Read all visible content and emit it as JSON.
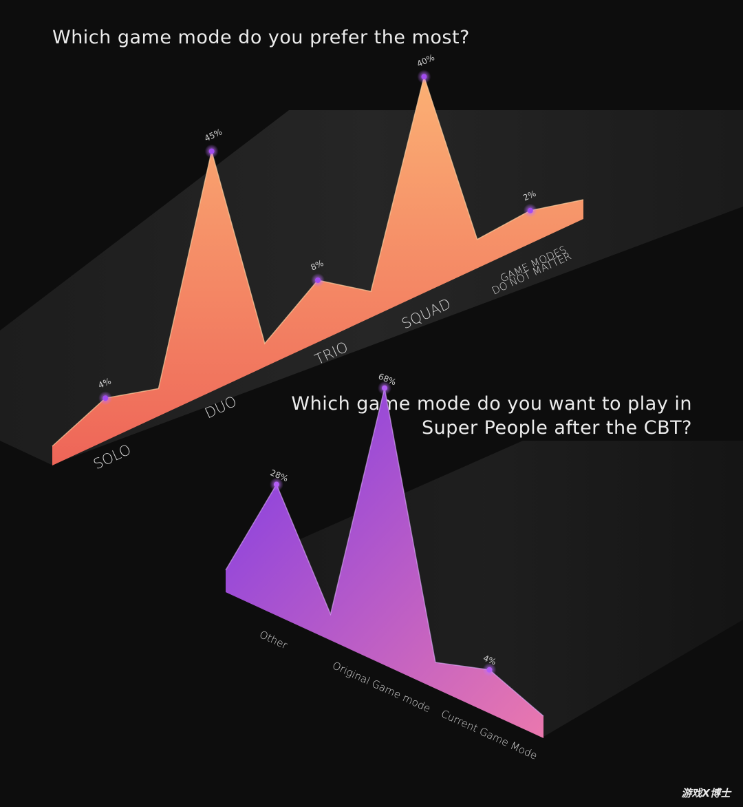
{
  "chart_data": [
    {
      "type": "area",
      "title": "Which game mode do you prefer the most?",
      "categories": [
        "SOLO",
        "DUO",
        "TRIO",
        "SQUAD",
        "GAME MODES DO NOT MATTER"
      ],
      "values": [
        4,
        45,
        8,
        40,
        2
      ],
      "value_labels": [
        "4%",
        "45%",
        "8%",
        "40%",
        "2%"
      ],
      "colors": {
        "top": "#f8a070",
        "bottom": "#ef6a5a"
      }
    },
    {
      "type": "area",
      "title": "Which game mode do you want to play in Super People after the CBT?",
      "title_lines": [
        "Which game mode do you want to play in",
        "Super People after the CBT?"
      ],
      "categories": [
        "Other",
        "Original Game mode",
        "Current Game Mode"
      ],
      "values": [
        28,
        68,
        4
      ],
      "value_labels": [
        "28%",
        "68%",
        "4%"
      ],
      "colors": {
        "top": "#8b3ee0",
        "bottom": "#e46fb0"
      }
    }
  ],
  "watermark": "游戏X博士"
}
